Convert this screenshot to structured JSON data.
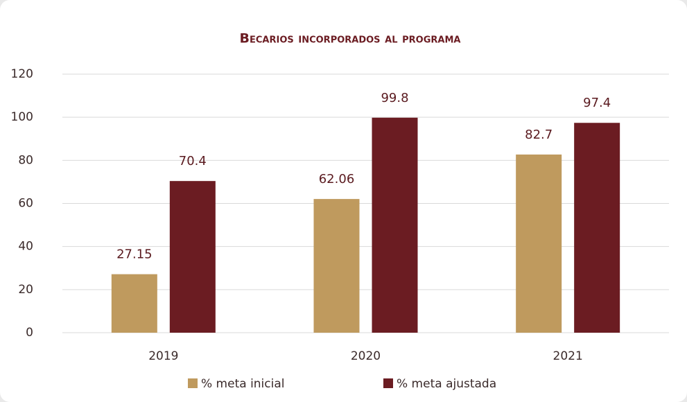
{
  "chart_data": {
    "type": "bar",
    "title": "Becarios incorporados al programa",
    "categories": [
      "2019",
      "2020",
      "2021"
    ],
    "series": [
      {
        "name": "% meta inicial",
        "color": "#bf9a5e",
        "values": [
          27.15,
          62.06,
          82.7
        ]
      },
      {
        "name": "% meta ajustada",
        "color": "#6b1c22",
        "values": [
          70.4,
          99.8,
          97.4
        ]
      }
    ],
    "ylim": [
      0,
      120
    ],
    "yticks": [
      0,
      20,
      40,
      60,
      80,
      100,
      120
    ],
    "grid": true,
    "legend": "bottom"
  }
}
